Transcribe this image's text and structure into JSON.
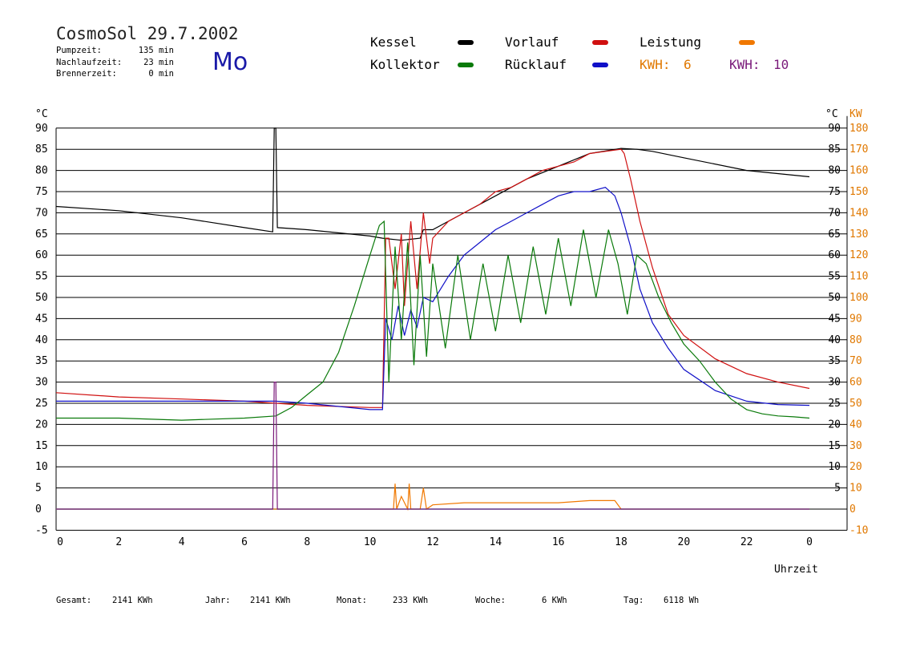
{
  "header": {
    "title": "CosmoSol 29.7.2002",
    "weekday": "Mo",
    "stats": [
      {
        "label": "Pumpzeit:",
        "value": "135 min"
      },
      {
        "label": "Nachlaufzeit:",
        "value": "23 min"
      },
      {
        "label": "Brennerzeit:",
        "value": "0 min"
      }
    ]
  },
  "legend": {
    "kessel": "Kessel",
    "kollektor": "Kollektor",
    "vorlauf": "Vorlauf",
    "ruecklauf": "Rücklauf",
    "leistung": "Leistung",
    "kwh1_label": "KWH:",
    "kwh1_value": "6",
    "kwh2_label": "KWH:",
    "kwh2_value": "10",
    "colors": {
      "kessel": "#000000",
      "kollektor": "#0a7a0a",
      "vorlauf": "#d01010",
      "ruecklauf": "#1010c8",
      "leistung": "#f07800"
    }
  },
  "footer": [
    {
      "label": "Gesamt:",
      "value": "2141 KWh"
    },
    {
      "label": "Jahr:",
      "value": "2141 KWh"
    },
    {
      "label": "Monat:",
      "value": "233 KWh"
    },
    {
      "label": "Woche:",
      "value": "6 KWh"
    },
    {
      "label": "Tag:",
      "value": "6118 Wh"
    }
  ],
  "chart_data": {
    "type": "line",
    "xlabel": "Uhrzeit",
    "ylabel_left": "°C",
    "ylabel_right_unit": "°C",
    "ylabel_right_power": "KW",
    "xlim": [
      0,
      24
    ],
    "ylim": [
      -5,
      95
    ],
    "x_ticks": [
      "0",
      "2",
      "4",
      "6",
      "8",
      "10",
      "12",
      "14",
      "16",
      "18",
      "20",
      "22",
      "0"
    ],
    "y_ticks": [
      "-5",
      "0",
      "5",
      "10",
      "15",
      "20",
      "25",
      "30",
      "35",
      "40",
      "45",
      "50",
      "55",
      "60",
      "65",
      "70",
      "75",
      "80",
      "85",
      "90"
    ],
    "y_ticks_right": [
      "",
      "",
      "5",
      "10",
      "15",
      "20",
      "25",
      "30",
      "35",
      "40",
      "45",
      "50",
      "55",
      "60",
      "65",
      "70",
      "75",
      "80",
      "85",
      "90"
    ],
    "kw_ticks": [
      "-10",
      "0",
      "10",
      "20",
      "30",
      "40",
      "50",
      "60",
      "70",
      "80",
      "90",
      "100",
      "110",
      "120",
      "130",
      "140",
      "150",
      "160",
      "170",
      "180"
    ],
    "grid": true,
    "series": [
      {
        "name": "Kessel",
        "color": "#000000",
        "x": [
          0,
          2,
          4,
          6,
          6.9,
          6.95,
          7.0,
          7.05,
          8,
          10,
          10.4,
          11,
          11.6,
          11.7,
          12,
          13,
          14,
          15,
          16,
          17,
          18,
          18.5,
          19,
          20,
          22,
          24
        ],
        "y": [
          71.5,
          70.5,
          68.8,
          66.5,
          65.5,
          90,
          90,
          66.5,
          66,
          64.5,
          64.0,
          63.5,
          64,
          66,
          66,
          70,
          74,
          78,
          81,
          84,
          85.2,
          85,
          84.5,
          83,
          80,
          78.5
        ]
      },
      {
        "name": "Vorlauf",
        "color": "#d01010",
        "x": [
          0,
          2,
          4,
          6,
          8,
          10,
          10.4,
          10.5,
          10.6,
          10.8,
          11.0,
          11.1,
          11.3,
          11.5,
          11.7,
          11.9,
          12,
          12.5,
          13,
          13.5,
          14,
          14.5,
          15,
          15.5,
          16,
          16.5,
          17,
          17.5,
          18,
          18.1,
          18.3,
          18.6,
          19,
          19.5,
          20,
          21,
          22,
          23,
          24
        ],
        "y": [
          27.5,
          26.5,
          26,
          25.5,
          24.5,
          24,
          24,
          64,
          64,
          52,
          65,
          48,
          68,
          52,
          70,
          58,
          64,
          68,
          70,
          72,
          75,
          76,
          78,
          80,
          81,
          82,
          84,
          84.5,
          85,
          84,
          78,
          68,
          57,
          46,
          41,
          35.5,
          32,
          30,
          28.5
        ]
      },
      {
        "name": "Rücklauf",
        "color": "#1010c8",
        "x": [
          0,
          2,
          4,
          6,
          7,
          8,
          10,
          10.4,
          10.5,
          10.7,
          10.9,
          11.1,
          11.3,
          11.5,
          11.7,
          12,
          12.5,
          13,
          13.5,
          14,
          14.5,
          15,
          15.5,
          16,
          16.5,
          17,
          17.5,
          17.8,
          18,
          18.3,
          18.6,
          19,
          19.5,
          20,
          21,
          22,
          23,
          24
        ],
        "y": [
          25.5,
          25.5,
          25.5,
          25.5,
          25.5,
          25,
          23.5,
          23.5,
          45,
          40,
          48,
          41,
          47,
          43,
          50,
          49,
          55,
          60,
          63,
          66,
          68,
          70,
          72,
          74,
          75,
          75,
          76,
          74,
          70,
          62,
          52,
          44,
          38,
          33,
          28,
          25.5,
          24.7,
          24.5
        ]
      },
      {
        "name": "Kollektor",
        "color": "#0a7a0a",
        "x": [
          0,
          2,
          4,
          6,
          7,
          7.5,
          8,
          8.5,
          9,
          9.5,
          10,
          10.3,
          10.45,
          10.6,
          10.8,
          11,
          11.2,
          11.4,
          11.6,
          11.8,
          12,
          12.4,
          12.8,
          13.2,
          13.6,
          14,
          14.4,
          14.8,
          15.2,
          15.6,
          16,
          16.4,
          16.8,
          17.2,
          17.6,
          17.9,
          18.2,
          18.5,
          18.8,
          19.2,
          19.6,
          20,
          20.5,
          21,
          21.5,
          22,
          22.5,
          23,
          23.5,
          24
        ],
        "y": [
          21.5,
          21.5,
          21,
          21.5,
          22,
          24,
          27,
          30,
          37,
          48,
          60,
          67,
          68,
          30,
          62,
          40,
          63,
          34,
          60,
          36,
          58,
          38,
          60,
          40,
          58,
          42,
          60,
          44,
          62,
          46,
          64,
          48,
          66,
          50,
          66,
          58,
          46,
          60,
          58,
          50,
          44,
          39,
          35,
          30,
          26,
          23.5,
          22.5,
          22,
          21.8,
          21.5
        ]
      },
      {
        "name": "Leistung",
        "color": "#f07800",
        "x": [
          0,
          10.5,
          10.75,
          10.8,
          10.85,
          11.0,
          11.2,
          11.25,
          11.3,
          11.6,
          11.7,
          11.8,
          12,
          13,
          14,
          15,
          16,
          17,
          17.8,
          18.0,
          18.2,
          24
        ],
        "y": [
          0,
          0,
          0,
          6,
          0,
          3,
          0,
          6,
          0,
          0,
          5,
          0,
          1,
          1.5,
          1.5,
          1.5,
          1.5,
          2,
          2,
          0,
          0,
          0
        ]
      },
      {
        "name": "Brenner",
        "color": "#7a1a7a",
        "x": [
          0,
          6.9,
          6.95,
          7.0,
          7.05,
          24
        ],
        "y": [
          0,
          0,
          30,
          30,
          0,
          0
        ]
      }
    ]
  }
}
